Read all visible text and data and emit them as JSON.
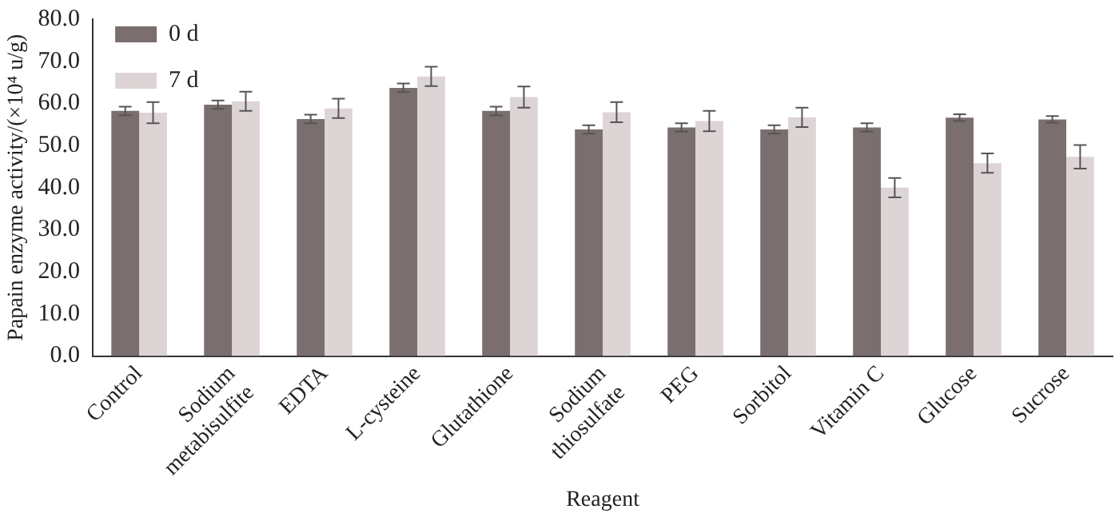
{
  "chart_data": {
    "type": "bar",
    "xlabel": "Reagent",
    "ylabel": "Papain enzyme activity/(×10⁴ u/g)",
    "categories": [
      "Control",
      "Sodium metabisulfite",
      "EDTA",
      "L-cysteine",
      "Glutathione",
      "Sodium thiosulfate",
      "PEG",
      "Sorbitol",
      "Vitamin C",
      "Glucose",
      "Sucrose"
    ],
    "series": [
      {
        "name": "0 d",
        "color": "#7a6e6e",
        "values": [
          58.2,
          59.7,
          56.3,
          63.7,
          58.2,
          53.8,
          54.3,
          53.8,
          54.3,
          56.6,
          56.2
        ],
        "errors": [
          1,
          1,
          1,
          1,
          1,
          1,
          1,
          1,
          1,
          0.8,
          0.8
        ]
      },
      {
        "name": "7 d",
        "color": "#ddd5d5",
        "values": [
          57.8,
          60.5,
          58.8,
          66.4,
          61.5,
          57.9,
          55.8,
          56.7,
          40.0,
          45.8,
          47.3
        ],
        "errors": [
          2.5,
          2.3,
          2.3,
          2.3,
          2.5,
          2.4,
          2.4,
          2.3,
          2.3,
          2.3,
          2.8
        ]
      }
    ],
    "ylim": [
      0,
      80
    ],
    "yticks": [
      {
        "value": 0,
        "label": "0.0"
      },
      {
        "value": 10,
        "label": "10.0"
      },
      {
        "value": 20,
        "label": "20.0"
      },
      {
        "value": 30,
        "label": "30.0"
      },
      {
        "value": 40,
        "label": "40.0"
      },
      {
        "value": 50,
        "label": "50.0"
      },
      {
        "value": 60,
        "label": "60.0"
      },
      {
        "value": 70,
        "label": "70.0"
      },
      {
        "value": 80,
        "label": "80.0"
      }
    ],
    "grid": false,
    "legend": "top left"
  }
}
